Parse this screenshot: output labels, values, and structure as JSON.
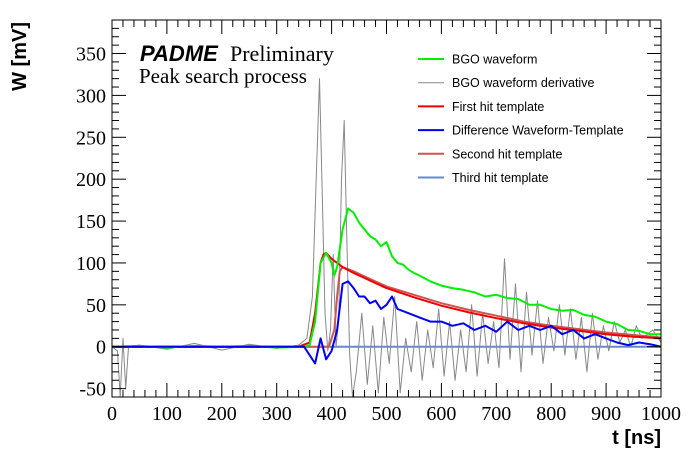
{
  "chart_data": {
    "type": "line",
    "title": "",
    "xlabel": "t [ns]",
    "ylabel": "W [mV]",
    "xlim": [
      0,
      1000
    ],
    "ylim": [
      -60,
      390
    ],
    "xticks": [
      0,
      100,
      200,
      300,
      400,
      500,
      600,
      700,
      800,
      900,
      1000
    ],
    "yticks": [
      -50,
      0,
      50,
      100,
      150,
      200,
      250,
      300,
      350
    ],
    "grid": false,
    "legend_position": "top-right",
    "annotations": {
      "brand": "PADME",
      "status": "Preliminary",
      "subtitle": "Peak search process"
    },
    "series": [
      {
        "name": "BGO waveform",
        "color": "#00ee00",
        "x": [
          0,
          50,
          100,
          150,
          200,
          250,
          300,
          350,
          360,
          370,
          380,
          390,
          400,
          405,
          410,
          420,
          430,
          440,
          450,
          460,
          470,
          480,
          490,
          500,
          510,
          520,
          530,
          540,
          550,
          560,
          580,
          600,
          620,
          640,
          660,
          680,
          700,
          720,
          740,
          760,
          780,
          800,
          820,
          840,
          860,
          880,
          900,
          920,
          940,
          960,
          980,
          1000
        ],
        "y": [
          0,
          1,
          -1,
          1,
          0,
          1,
          -1,
          0,
          2,
          30,
          100,
          112,
          100,
          85,
          95,
          140,
          165,
          160,
          148,
          140,
          132,
          128,
          120,
          125,
          108,
          100,
          98,
          92,
          88,
          85,
          78,
          73,
          70,
          68,
          65,
          60,
          62,
          58,
          57,
          50,
          50,
          45,
          43,
          44,
          38,
          36,
          30,
          27,
          20,
          19,
          15,
          15
        ]
      },
      {
        "name": "BGO waveform derivative",
        "color": "#888888",
        "x": [
          0,
          10,
          15,
          20,
          25,
          30,
          50,
          100,
          150,
          200,
          250,
          300,
          340,
          355,
          365,
          372,
          378,
          383,
          388,
          393,
          398,
          403,
          408,
          413,
          418,
          423,
          428,
          433,
          438,
          445,
          455,
          465,
          475,
          485,
          495,
          505,
          515,
          525,
          535,
          545,
          555,
          565,
          575,
          585,
          595,
          605,
          615,
          625,
          635,
          645,
          655,
          665,
          675,
          685,
          695,
          705,
          715,
          725,
          735,
          745,
          755,
          765,
          775,
          785,
          795,
          805,
          815,
          825,
          835,
          845,
          855,
          865,
          875,
          885,
          895,
          905,
          915,
          925,
          935,
          945,
          955,
          965,
          975,
          985,
          1000
        ],
        "y": [
          0,
          -5,
          -60,
          10,
          -50,
          0,
          2,
          -3,
          4,
          -4,
          3,
          -2,
          2,
          10,
          60,
          200,
          320,
          180,
          40,
          -5,
          20,
          110,
          0,
          30,
          200,
          270,
          120,
          -10,
          -60,
          -30,
          40,
          -45,
          25,
          -55,
          35,
          -20,
          60,
          -55,
          10,
          -30,
          30,
          -40,
          20,
          -25,
          45,
          -35,
          30,
          -40,
          20,
          -30,
          50,
          -35,
          40,
          -20,
          30,
          -25,
          105,
          -15,
          75,
          -30,
          65,
          -10,
          55,
          -20,
          35,
          -5,
          50,
          -10,
          45,
          -15,
          35,
          -30,
          40,
          -15,
          25,
          -5,
          30,
          5,
          20,
          0,
          25,
          10,
          15,
          20,
          5
        ]
      },
      {
        "name": "First hit template",
        "color": "#ee0000",
        "x": [
          0,
          340,
          360,
          370,
          380,
          385,
          390,
          400,
          420,
          440,
          460,
          480,
          500,
          550,
          600,
          650,
          700,
          750,
          800,
          850,
          900,
          950,
          1000
        ],
        "y": [
          0,
          0,
          5,
          40,
          100,
          110,
          112,
          105,
          95,
          88,
          82,
          76,
          70,
          59,
          49,
          41,
          34,
          28,
          23,
          19,
          15,
          12,
          10
        ]
      },
      {
        "name": "Difference Waveform-Template",
        "color": "#0000ee",
        "x": [
          0,
          350,
          360,
          370,
          380,
          390,
          400,
          410,
          420,
          430,
          440,
          450,
          460,
          470,
          480,
          490,
          500,
          510,
          520,
          540,
          560,
          580,
          600,
          620,
          640,
          660,
          680,
          700,
          720,
          740,
          760,
          780,
          800,
          820,
          840,
          860,
          880,
          900,
          920,
          940,
          960,
          980,
          1000
        ],
        "y": [
          0,
          0,
          -10,
          -20,
          10,
          -15,
          -5,
          20,
          75,
          78,
          70,
          60,
          60,
          52,
          55,
          45,
          50,
          60,
          45,
          40,
          35,
          30,
          30,
          25,
          28,
          20,
          25,
          18,
          30,
          20,
          25,
          20,
          25,
          15,
          20,
          10,
          15,
          10,
          5,
          2,
          5,
          3,
          0
        ]
      },
      {
        "name": "Second hit template",
        "color": "#cc5555",
        "x": [
          0,
          395,
          405,
          410,
          415,
          420,
          440,
          460,
          480,
          500,
          550,
          600,
          650,
          700,
          750,
          800,
          850,
          900,
          950,
          1000
        ],
        "y": [
          0,
          0,
          20,
          60,
          90,
          95,
          90,
          84,
          78,
          72,
          62,
          52,
          44,
          37,
          30,
          25,
          21,
          17,
          14,
          11
        ]
      },
      {
        "name": "Third hit template",
        "color": "#6688cc",
        "x": [
          0,
          1000
        ],
        "y": [
          0,
          0
        ]
      }
    ]
  }
}
